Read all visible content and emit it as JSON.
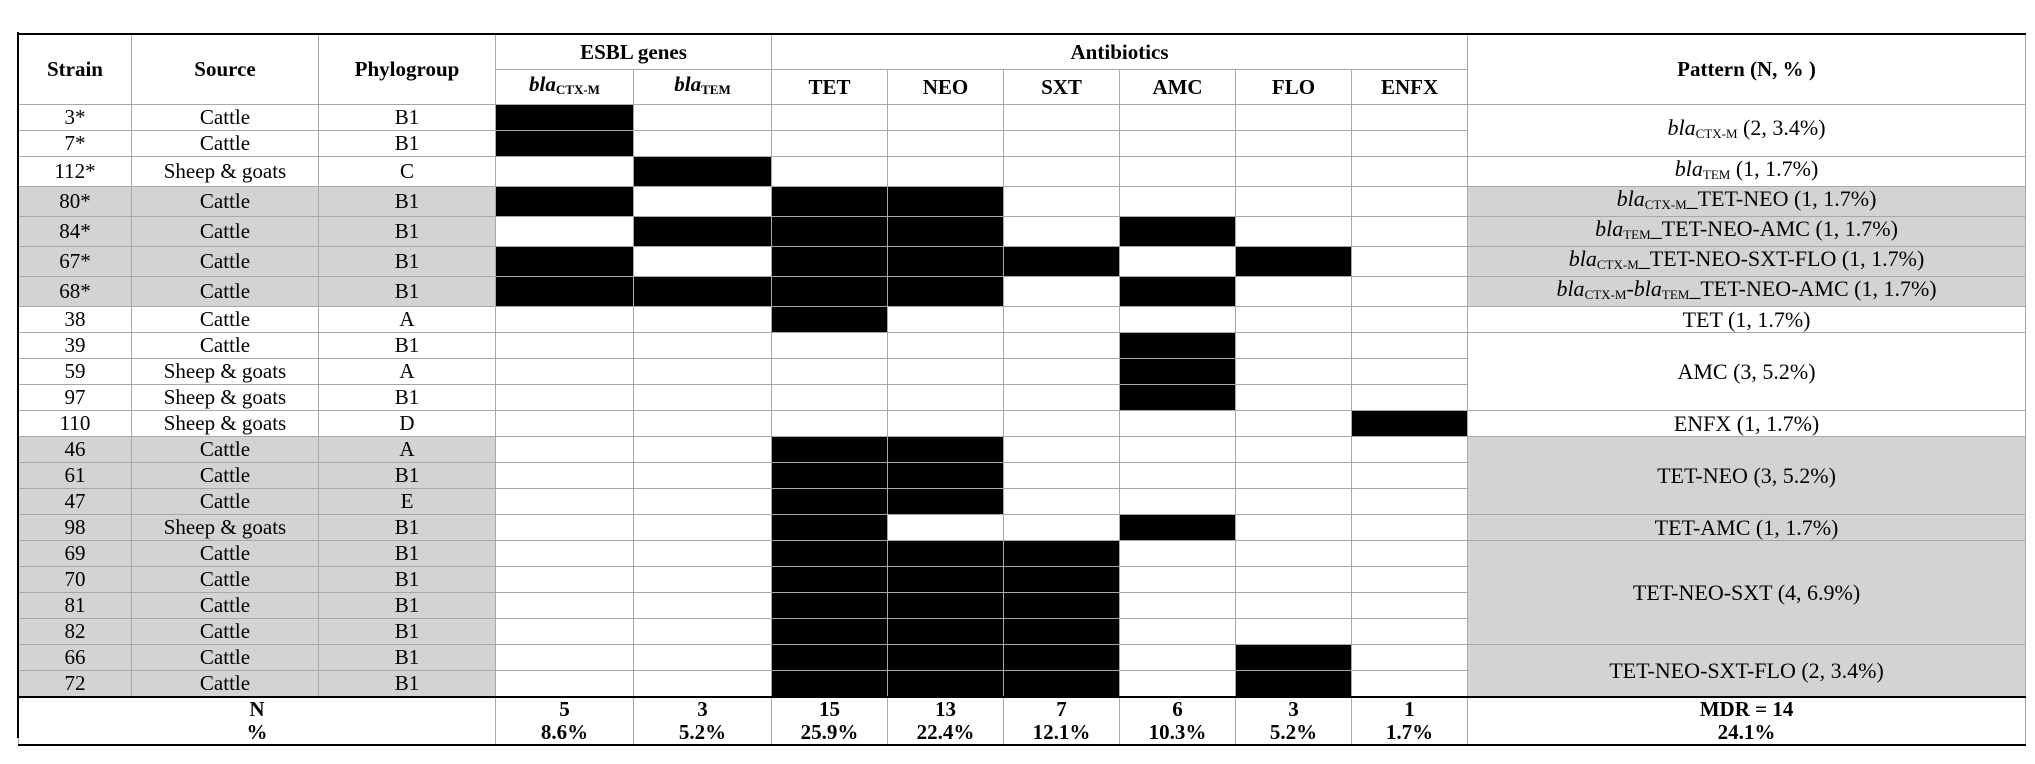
{
  "headers": {
    "strain": "Strain",
    "source": "Source",
    "phylogroup": "Phylogroup",
    "esbl_genes": "ESBL genes",
    "antibiotics": "Antibiotics",
    "pattern": "Pattern (N, % )",
    "gene_cols": [
      {
        "base": "bla",
        "sub": "CTX-M"
      },
      {
        "base": "bla",
        "sub": "TEM"
      }
    ],
    "antibiotic_cols": [
      "TET",
      "NEO",
      "SXT",
      "AMC",
      "FLO",
      "ENFX"
    ]
  },
  "rows": [
    {
      "strain": "3*",
      "source": "Cattle",
      "phylogroup": "B1",
      "shaded": false,
      "marks": [
        1,
        0,
        0,
        0,
        0,
        0,
        0,
        0
      ]
    },
    {
      "strain": "7*",
      "source": "Cattle",
      "phylogroup": "B1",
      "shaded": false,
      "marks": [
        1,
        0,
        0,
        0,
        0,
        0,
        0,
        0
      ]
    },
    {
      "strain": "112*",
      "source": "Sheep & goats",
      "phylogroup": "C",
      "shaded": false,
      "marks": [
        0,
        1,
        0,
        0,
        0,
        0,
        0,
        0
      ]
    },
    {
      "strain": "80*",
      "source": "Cattle",
      "phylogroup": "B1",
      "shaded": true,
      "marks": [
        1,
        0,
        1,
        1,
        0,
        0,
        0,
        0
      ]
    },
    {
      "strain": "84*",
      "source": "Cattle",
      "phylogroup": "B1",
      "shaded": true,
      "marks": [
        0,
        1,
        1,
        1,
        0,
        1,
        0,
        0
      ]
    },
    {
      "strain": "67*",
      "source": "Cattle",
      "phylogroup": "B1",
      "shaded": true,
      "marks": [
        1,
        0,
        1,
        1,
        1,
        0,
        1,
        0
      ]
    },
    {
      "strain": "68*",
      "source": "Cattle",
      "phylogroup": "B1",
      "shaded": true,
      "marks": [
        1,
        1,
        1,
        1,
        0,
        1,
        0,
        0
      ]
    },
    {
      "strain": "38",
      "source": "Cattle",
      "phylogroup": "A",
      "shaded": false,
      "marks": [
        0,
        0,
        1,
        0,
        0,
        0,
        0,
        0
      ]
    },
    {
      "strain": "39",
      "source": "Cattle",
      "phylogroup": "B1",
      "shaded": false,
      "marks": [
        0,
        0,
        0,
        0,
        0,
        1,
        0,
        0
      ]
    },
    {
      "strain": "59",
      "source": "Sheep & goats",
      "phylogroup": "A",
      "shaded": false,
      "marks": [
        0,
        0,
        0,
        0,
        0,
        1,
        0,
        0
      ]
    },
    {
      "strain": "97",
      "source": "Sheep & goats",
      "phylogroup": "B1",
      "shaded": false,
      "marks": [
        0,
        0,
        0,
        0,
        0,
        1,
        0,
        0
      ]
    },
    {
      "strain": "110",
      "source": "Sheep & goats",
      "phylogroup": "D",
      "shaded": false,
      "marks": [
        0,
        0,
        0,
        0,
        0,
        0,
        0,
        1
      ]
    },
    {
      "strain": "46",
      "source": "Cattle",
      "phylogroup": "A",
      "shaded": true,
      "marks": [
        0,
        0,
        1,
        1,
        0,
        0,
        0,
        0
      ]
    },
    {
      "strain": "61",
      "source": "Cattle",
      "phylogroup": "B1",
      "shaded": true,
      "marks": [
        0,
        0,
        1,
        1,
        0,
        0,
        0,
        0
      ]
    },
    {
      "strain": "47",
      "source": "Cattle",
      "phylogroup": "E",
      "shaded": true,
      "marks": [
        0,
        0,
        1,
        1,
        0,
        0,
        0,
        0
      ]
    },
    {
      "strain": "98",
      "source": "Sheep & goats",
      "phylogroup": "B1",
      "shaded": true,
      "marks": [
        0,
        0,
        1,
        0,
        0,
        1,
        0,
        0
      ]
    },
    {
      "strain": "69",
      "source": "Cattle",
      "phylogroup": "B1",
      "shaded": true,
      "marks": [
        0,
        0,
        1,
        1,
        1,
        0,
        0,
        0
      ]
    },
    {
      "strain": "70",
      "source": "Cattle",
      "phylogroup": "B1",
      "shaded": true,
      "marks": [
        0,
        0,
        1,
        1,
        1,
        0,
        0,
        0
      ]
    },
    {
      "strain": "81",
      "source": "Cattle",
      "phylogroup": "B1",
      "shaded": true,
      "marks": [
        0,
        0,
        1,
        1,
        1,
        0,
        0,
        0
      ]
    },
    {
      "strain": "82",
      "source": "Cattle",
      "phylogroup": "B1",
      "shaded": true,
      "marks": [
        0,
        0,
        1,
        1,
        1,
        0,
        0,
        0
      ]
    },
    {
      "strain": "66",
      "source": "Cattle",
      "phylogroup": "B1",
      "shaded": true,
      "marks": [
        0,
        0,
        1,
        1,
        1,
        0,
        1,
        0
      ]
    },
    {
      "strain": "72",
      "source": "Cattle",
      "phylogroup": "B1",
      "shaded": true,
      "marks": [
        0,
        0,
        1,
        1,
        1,
        0,
        1,
        0
      ]
    }
  ],
  "patterns": [
    {
      "start": 0,
      "span": 2,
      "shaded": false,
      "gene": "bla",
      "gene_sub": "CTX-M",
      "text": " (2, 3.4%)"
    },
    {
      "start": 2,
      "span": 1,
      "shaded": false,
      "gene": "bla",
      "gene_sub": "TEM",
      "text": " (1, 1.7%)"
    },
    {
      "start": 3,
      "span": 1,
      "shaded": true,
      "gene": "bla",
      "gene_sub": "CTX-M",
      "text": "_TET-NEO (1, 1.7%)"
    },
    {
      "start": 4,
      "span": 1,
      "shaded": true,
      "gene": "bla",
      "gene_sub": "TEM",
      "text": "_TET-NEO-AMC (1, 1.7%)"
    },
    {
      "start": 5,
      "span": 1,
      "shaded": true,
      "gene": "bla",
      "gene_sub": "CTX-M",
      "text": "_TET-NEO-SXT-FLO (1, 1.7%)"
    },
    {
      "start": 6,
      "span": 1,
      "shaded": true,
      "gene": "bla",
      "gene_sub": "CTX-M",
      "gene2": "bla",
      "gene2_sub": "TEM",
      "text": "_TET-NEO-AMC (1, 1.7%)"
    },
    {
      "start": 7,
      "span": 1,
      "shaded": false,
      "text": "TET (1, 1.7%)"
    },
    {
      "start": 8,
      "span": 3,
      "shaded": false,
      "text": "AMC (3, 5.2%)"
    },
    {
      "start": 11,
      "span": 1,
      "shaded": false,
      "text": "ENFX (1, 1.7%)"
    },
    {
      "start": 12,
      "span": 3,
      "shaded": true,
      "text": "TET-NEO (3, 5.2%)"
    },
    {
      "start": 15,
      "span": 1,
      "shaded": true,
      "text": "TET-AMC (1, 1.7%)"
    },
    {
      "start": 16,
      "span": 4,
      "shaded": true,
      "text": "TET-NEO-SXT (4, 6.9%)"
    },
    {
      "start": 20,
      "span": 2,
      "shaded": true,
      "text": "TET-NEO-SXT-FLO (2, 3.4%)"
    }
  ],
  "footer": {
    "n_label": "N",
    "pct_label": "%",
    "counts": [
      "5",
      "3",
      "15",
      "13",
      "7",
      "6",
      "3",
      "1"
    ],
    "percents": [
      "8.6%",
      "5.2%",
      "25.9%",
      "22.4%",
      "12.1%",
      "10.3%",
      "5.2%",
      "1.7%"
    ],
    "mdr_label": "MDR = 14",
    "mdr_pct": "24.1%"
  }
}
